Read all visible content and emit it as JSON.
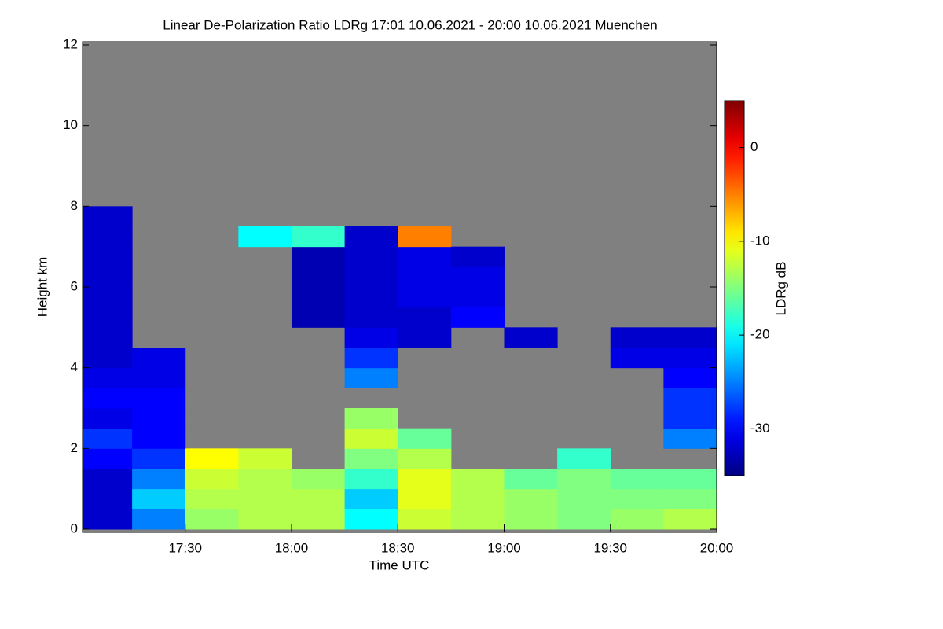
{
  "chart_data": {
    "type": "heatmap",
    "title": "Linear De-Polarization Ratio LDRg   17:01 10.06.2021 - 20:00 10.06.2021 Muenchen",
    "x_label": "Time UTC",
    "y_label": "Height km",
    "colorbar_label": "LDRg dB",
    "colormap": "jet",
    "background_color": "#808080",
    "xlim": [
      17.0167,
      20.0
    ],
    "xticks": [
      {
        "value": 17.5,
        "label": "17:30"
      },
      {
        "value": 18.0,
        "label": "18:00"
      },
      {
        "value": 18.5,
        "label": "18:30"
      },
      {
        "value": 19.0,
        "label": "19:00"
      },
      {
        "value": 19.5,
        "label": "19:30"
      },
      {
        "value": 20.0,
        "label": "20:00"
      }
    ],
    "ylim": [
      0,
      12
    ],
    "yticks": [
      0,
      2,
      4,
      6,
      8,
      10,
      12
    ],
    "zlim": [
      -35,
      5
    ],
    "zticks": [
      0,
      -10,
      -20,
      -30
    ],
    "x_edges": [
      17.0167,
      17.25,
      17.5,
      17.75,
      18.0,
      18.25,
      18.5,
      18.75,
      19.0,
      19.25,
      19.5,
      19.75,
      20.0
    ],
    "y_edges": [
      0,
      0.5,
      1,
      1.5,
      2,
      2.5,
      3,
      3.5,
      4,
      4.5,
      5,
      5.5,
      6,
      6.5,
      7,
      7.5,
      8
    ],
    "z": [
      [
        -32,
        -25,
        -14,
        -13,
        -13,
        -20,
        -12,
        -13,
        -14,
        -15,
        -14,
        -13
      ],
      [
        -32,
        -22,
        -13,
        -13,
        -13,
        -22,
        -11,
        -13,
        -14,
        -15,
        -15,
        -15
      ],
      [
        -32,
        -25,
        -12,
        -13,
        -14,
        -18,
        -11,
        -13,
        -16,
        -15,
        -16,
        -16
      ],
      [
        -30,
        -28,
        -10,
        -12,
        null,
        -15,
        -13,
        null,
        null,
        -18,
        null,
        null
      ],
      [
        -28,
        -30,
        null,
        null,
        null,
        -12,
        -16,
        null,
        null,
        null,
        null,
        -25
      ],
      [
        -31,
        -30,
        null,
        null,
        null,
        -14,
        null,
        null,
        null,
        null,
        null,
        -28
      ],
      [
        -30,
        -30,
        null,
        null,
        null,
        null,
        null,
        null,
        null,
        null,
        null,
        -28
      ],
      [
        -31,
        -31,
        null,
        null,
        null,
        -25,
        null,
        null,
        null,
        null,
        null,
        -30
      ],
      [
        -32,
        -31,
        null,
        null,
        null,
        -28,
        null,
        null,
        null,
        null,
        -31,
        -31
      ],
      [
        -32,
        null,
        null,
        null,
        null,
        -31,
        -32,
        null,
        -32,
        null,
        -32,
        -32
      ],
      [
        -32,
        null,
        null,
        null,
        -33,
        -32,
        -32,
        -30,
        null,
        null,
        null,
        null
      ],
      [
        -32,
        null,
        null,
        null,
        -33,
        -32,
        -31,
        -31,
        null,
        null,
        null,
        null
      ],
      [
        -32,
        null,
        null,
        null,
        -33,
        -32,
        -31,
        -31,
        null,
        null,
        null,
        null
      ],
      [
        -32,
        null,
        null,
        null,
        -33,
        -32,
        -31,
        -32,
        null,
        null,
        null,
        null
      ],
      [
        -32,
        null,
        null,
        -20,
        -18,
        -32,
        -5,
        null,
        null,
        null,
        null,
        null
      ],
      [
        -32,
        null,
        null,
        null,
        null,
        null,
        null,
        null,
        null,
        null,
        null,
        null
      ]
    ]
  }
}
